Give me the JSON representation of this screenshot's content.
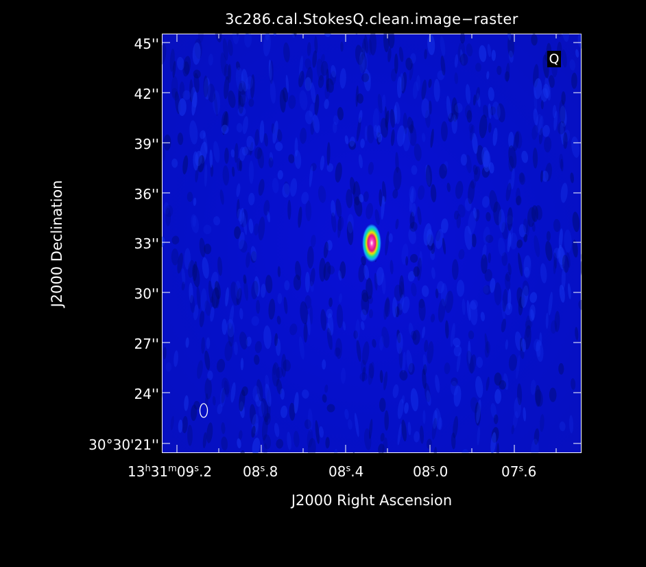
{
  "title": "3c286.cal.StokesQ.clean.image−raster",
  "stokes_label": "Q",
  "axes": {
    "x_title": "J2000 Right Ascension",
    "y_title": "J2000 Declination",
    "y_ticks": [
      "45''",
      "42''",
      "39''",
      "36''",
      "33''",
      "30''",
      "27''",
      "24''",
      "30°30'21''"
    ],
    "x_ticks": [
      {
        "h": "13",
        "m": "31",
        "s": "09",
        "frac": ".2"
      },
      {
        "s": "08",
        "frac": ".8"
      },
      {
        "s": "08",
        "frac": ".4"
      },
      {
        "s": "08",
        "frac": ".0"
      },
      {
        "s": "07",
        "frac": ".6"
      }
    ]
  },
  "colors": {
    "background": "#000000",
    "image_base": "#0510c8",
    "source_core": "#e0187a",
    "source_ring": "#f0e000"
  }
}
